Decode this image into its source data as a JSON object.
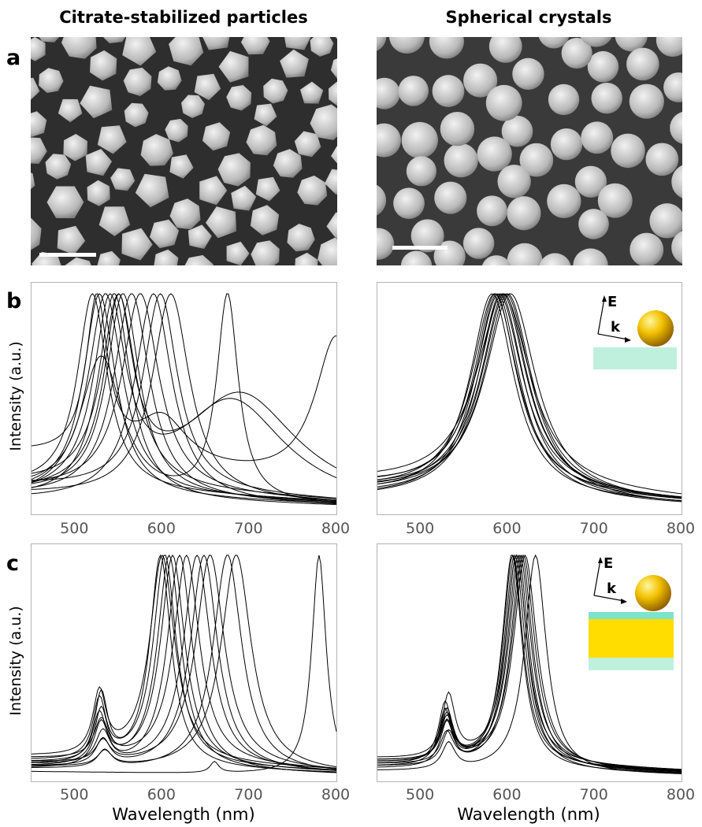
{
  "titles": {
    "left": "Citrate-stabilized particles",
    "right": "Spherical crystals"
  },
  "rows": {
    "a": "a",
    "b": "b",
    "c": "c"
  },
  "inset": {
    "e_label": "E",
    "k_label": "k"
  },
  "colors": {
    "curve": "#000000",
    "axis": "#b3b3b3",
    "tick_text": "#555555",
    "substrate_cyan": "#bff0de",
    "spacer_cyan": "#7fe3cc",
    "gold_film": "#ffdd00",
    "sphere": "#e0b000"
  },
  "micrographs": [
    {
      "name": "citrate-micrograph",
      "shape": "faceted",
      "seed": 7,
      "scalebar": true
    },
    {
      "name": "spherical-micrograph",
      "shape": "spherical",
      "seed": 21,
      "scalebar": true
    }
  ],
  "chart_data": [
    {
      "type": "line",
      "panel": "b-left",
      "ylabel": "Intensity (a.u.)",
      "xlabel": "",
      "xlim": [
        450,
        800
      ],
      "ylim": [
        0,
        1
      ],
      "xticks": [
        500,
        600,
        700,
        800
      ],
      "series": [
        {
          "peaks": [
            {
              "c": 520,
              "w": 42,
              "a": 1
            }
          ],
          "base": 0.12
        },
        {
          "peaks": [
            {
              "c": 528,
              "w": 45,
              "a": 1
            }
          ],
          "base": 0.08
        },
        {
          "peaks": [
            {
              "c": 535,
              "w": 48,
              "a": 1
            }
          ],
          "base": 0.1
        },
        {
          "peaks": [
            {
              "c": 545,
              "w": 45,
              "a": 1
            }
          ],
          "base": 0.06
        },
        {
          "peaks": [
            {
              "c": 550,
              "w": 48,
              "a": 1
            }
          ],
          "base": 0.14
        },
        {
          "peaks": [
            {
              "c": 555,
              "w": 46,
              "a": 1
            }
          ],
          "base": 0.09
        },
        {
          "peaks": [
            {
              "c": 565,
              "w": 50,
              "a": 1
            }
          ],
          "base": 0.07
        },
        {
          "peaks": [
            {
              "c": 575,
              "w": 52,
              "a": 1
            }
          ],
          "base": 0.11
        },
        {
          "peaks": [
            {
              "c": 590,
              "w": 52,
              "a": 1
            }
          ],
          "base": 0.05
        },
        {
          "peaks": [
            {
              "c": 598,
              "w": 48,
              "a": 1
            }
          ],
          "base": 0.13
        },
        {
          "peaks": [
            {
              "c": 610,
              "w": 52,
              "a": 1
            }
          ],
          "base": 0.08
        },
        {
          "peaks": [
            {
              "c": 540,
              "w": 45,
              "a": 1
            },
            {
              "c": 680,
              "w": 150,
              "a": 0.55
            }
          ],
          "base": 0.04
        },
        {
          "peaks": [
            {
              "c": 550,
              "w": 40,
              "a": 1
            },
            {
              "c": 690,
              "w": 160,
              "a": 0.6
            }
          ],
          "base": 0.06
        },
        {
          "peaks": [
            {
              "c": 525,
              "w": 30,
              "a": 1
            },
            {
              "c": 600,
              "w": 70,
              "a": 0.3
            },
            {
              "c": 800,
              "w": 60,
              "a": 0.95
            }
          ],
          "base": 0.35
        },
        {
          "peaks": [
            {
              "c": 530,
              "w": 60,
              "a": 0.7
            },
            {
              "c": 675,
              "w": 30,
              "a": 1
            }
          ],
          "base": 0.05
        }
      ]
    },
    {
      "type": "line",
      "panel": "b-right",
      "ylabel": "",
      "xlabel": "",
      "xlim": [
        450,
        800
      ],
      "ylim": [
        0,
        1
      ],
      "xticks": [
        500,
        600,
        700,
        800
      ],
      "series": [
        {
          "peaks": [
            {
              "c": 582,
              "w": 62,
              "a": 1
            }
          ],
          "base": 0.08
        },
        {
          "peaks": [
            {
              "c": 585,
              "w": 65,
              "a": 1
            }
          ],
          "base": 0.1
        },
        {
          "peaks": [
            {
              "c": 588,
              "w": 63,
              "a": 1
            }
          ],
          "base": 0.06
        },
        {
          "peaks": [
            {
              "c": 590,
              "w": 66,
              "a": 1
            }
          ],
          "base": 0.12
        },
        {
          "peaks": [
            {
              "c": 592,
              "w": 64,
              "a": 1
            }
          ],
          "base": 0.07
        },
        {
          "peaks": [
            {
              "c": 594,
              "w": 68,
              "a": 1
            }
          ],
          "base": 0.09
        },
        {
          "peaks": [
            {
              "c": 596,
              "w": 65,
              "a": 1
            }
          ],
          "base": 0.11
        },
        {
          "peaks": [
            {
              "c": 598,
              "w": 70,
              "a": 1
            }
          ],
          "base": 0.05
        },
        {
          "peaks": [
            {
              "c": 600,
              "w": 67,
              "a": 1
            }
          ],
          "base": 0.1
        },
        {
          "peaks": [
            {
              "c": 586,
              "w": 60,
              "a": 1
            }
          ],
          "base": 0.13
        },
        {
          "peaks": [
            {
              "c": 603,
              "w": 72,
              "a": 1
            }
          ],
          "base": 0.08
        },
        {
          "peaks": [
            {
              "c": 595,
              "w": 75,
              "a": 1
            }
          ],
          "base": 0.14
        }
      ]
    },
    {
      "type": "line",
      "panel": "c-left",
      "ylabel": "Intensity (a.u.)",
      "xlabel": "Wavelength (nm)",
      "xlim": [
        450,
        800
      ],
      "ylim": [
        0,
        1
      ],
      "xticks": [
        500,
        600,
        700,
        800
      ],
      "series": [
        {
          "peaks": [
            {
              "c": 530,
              "w": 18,
              "a": 0.32
            },
            {
              "c": 598,
              "w": 30,
              "a": 1
            }
          ],
          "base": 0.06
        },
        {
          "peaks": [
            {
              "c": 528,
              "w": 18,
              "a": 0.28
            },
            {
              "c": 603,
              "w": 32,
              "a": 1
            }
          ],
          "base": 0.08
        },
        {
          "peaks": [
            {
              "c": 530,
              "w": 18,
              "a": 0.25
            },
            {
              "c": 608,
              "w": 33,
              "a": 1
            }
          ],
          "base": 0.05
        },
        {
          "peaks": [
            {
              "c": 528,
              "w": 18,
              "a": 0.22
            },
            {
              "c": 612,
              "w": 34,
              "a": 1
            }
          ],
          "base": 0.07
        },
        {
          "peaks": [
            {
              "c": 530,
              "w": 20,
              "a": 0.2
            },
            {
              "c": 620,
              "w": 35,
              "a": 1
            }
          ],
          "base": 0.04
        },
        {
          "peaks": [
            {
              "c": 530,
              "w": 20,
              "a": 0.18
            },
            {
              "c": 628,
              "w": 36,
              "a": 1
            }
          ],
          "base": 0.09
        },
        {
          "peaks": [
            {
              "c": 532,
              "w": 20,
              "a": 0.15
            },
            {
              "c": 640,
              "w": 38,
              "a": 1
            }
          ],
          "base": 0.06
        },
        {
          "peaks": [
            {
              "c": 532,
              "w": 20,
              "a": 0.12
            },
            {
              "c": 648,
              "w": 38,
              "a": 1
            }
          ],
          "base": 0.05
        },
        {
          "peaks": [
            {
              "c": 532,
              "w": 20,
              "a": 0.1
            },
            {
              "c": 655,
              "w": 40,
              "a": 1
            }
          ],
          "base": 0.07
        },
        {
          "peaks": [
            {
              "c": 534,
              "w": 20,
              "a": 0.08
            },
            {
              "c": 675,
              "w": 40,
              "a": 1
            }
          ],
          "base": 0.04
        },
        {
          "peaks": [
            {
              "c": 534,
              "w": 20,
              "a": 0.07
            },
            {
              "c": 685,
              "w": 42,
              "a": 1
            }
          ],
          "base": 0.05
        },
        {
          "peaks": [
            {
              "c": 528,
              "w": 18,
              "a": 0.3
            },
            {
              "c": 600,
              "w": 35,
              "a": 1
            }
          ],
          "base": 0.1
        },
        {
          "peaks": [
            {
              "c": 660,
              "w": 12,
              "a": 0.05
            },
            {
              "c": 780,
              "w": 20,
              "a": 1
            }
          ],
          "base": 0.03
        }
      ]
    },
    {
      "type": "line",
      "panel": "c-right",
      "ylabel": "",
      "xlabel": "Wavelength (nm)",
      "xlim": [
        450,
        800
      ],
      "ylim": [
        0,
        1
      ],
      "xticks": [
        500,
        600,
        700,
        800
      ],
      "series": [
        {
          "peaks": [
            {
              "c": 528,
              "w": 18,
              "a": 0.25
            },
            {
              "c": 605,
              "w": 28,
              "a": 1
            }
          ],
          "base": 0.05
        },
        {
          "peaks": [
            {
              "c": 530,
              "w": 18,
              "a": 0.22
            },
            {
              "c": 608,
              "w": 29,
              "a": 1
            }
          ],
          "base": 0.07
        },
        {
          "peaks": [
            {
              "c": 530,
              "w": 18,
              "a": 0.2
            },
            {
              "c": 610,
              "w": 30,
              "a": 1
            }
          ],
          "base": 0.04
        },
        {
          "peaks": [
            {
              "c": 528,
              "w": 18,
              "a": 0.28
            },
            {
              "c": 612,
              "w": 30,
              "a": 1
            }
          ],
          "base": 0.06
        },
        {
          "peaks": [
            {
              "c": 530,
              "w": 18,
              "a": 0.18
            },
            {
              "c": 614,
              "w": 31,
              "a": 1
            }
          ],
          "base": 0.08
        },
        {
          "peaks": [
            {
              "c": 532,
              "w": 18,
              "a": 0.15
            },
            {
              "c": 616,
              "w": 31,
              "a": 1
            }
          ],
          "base": 0.05
        },
        {
          "peaks": [
            {
              "c": 530,
              "w": 18,
              "a": 0.24
            },
            {
              "c": 618,
              "w": 32,
              "a": 1
            }
          ],
          "base": 0.07
        },
        {
          "peaks": [
            {
              "c": 532,
              "w": 18,
              "a": 0.3
            },
            {
              "c": 610,
              "w": 30,
              "a": 1
            }
          ],
          "base": 0.09
        },
        {
          "peaks": [
            {
              "c": 530,
              "w": 18,
              "a": 0.14
            },
            {
              "c": 620,
              "w": 33,
              "a": 1
            }
          ],
          "base": 0.06
        },
        {
          "peaks": [
            {
              "c": 532,
              "w": 18,
              "a": 0.12
            },
            {
              "c": 632,
              "w": 30,
              "a": 1
            }
          ],
          "base": 0.03
        },
        {
          "peaks": [
            {
              "c": 530,
              "w": 18,
              "a": 0.2
            },
            {
              "c": 606,
              "w": 28,
              "a": 1
            }
          ],
          "base": 0.08
        }
      ]
    }
  ]
}
